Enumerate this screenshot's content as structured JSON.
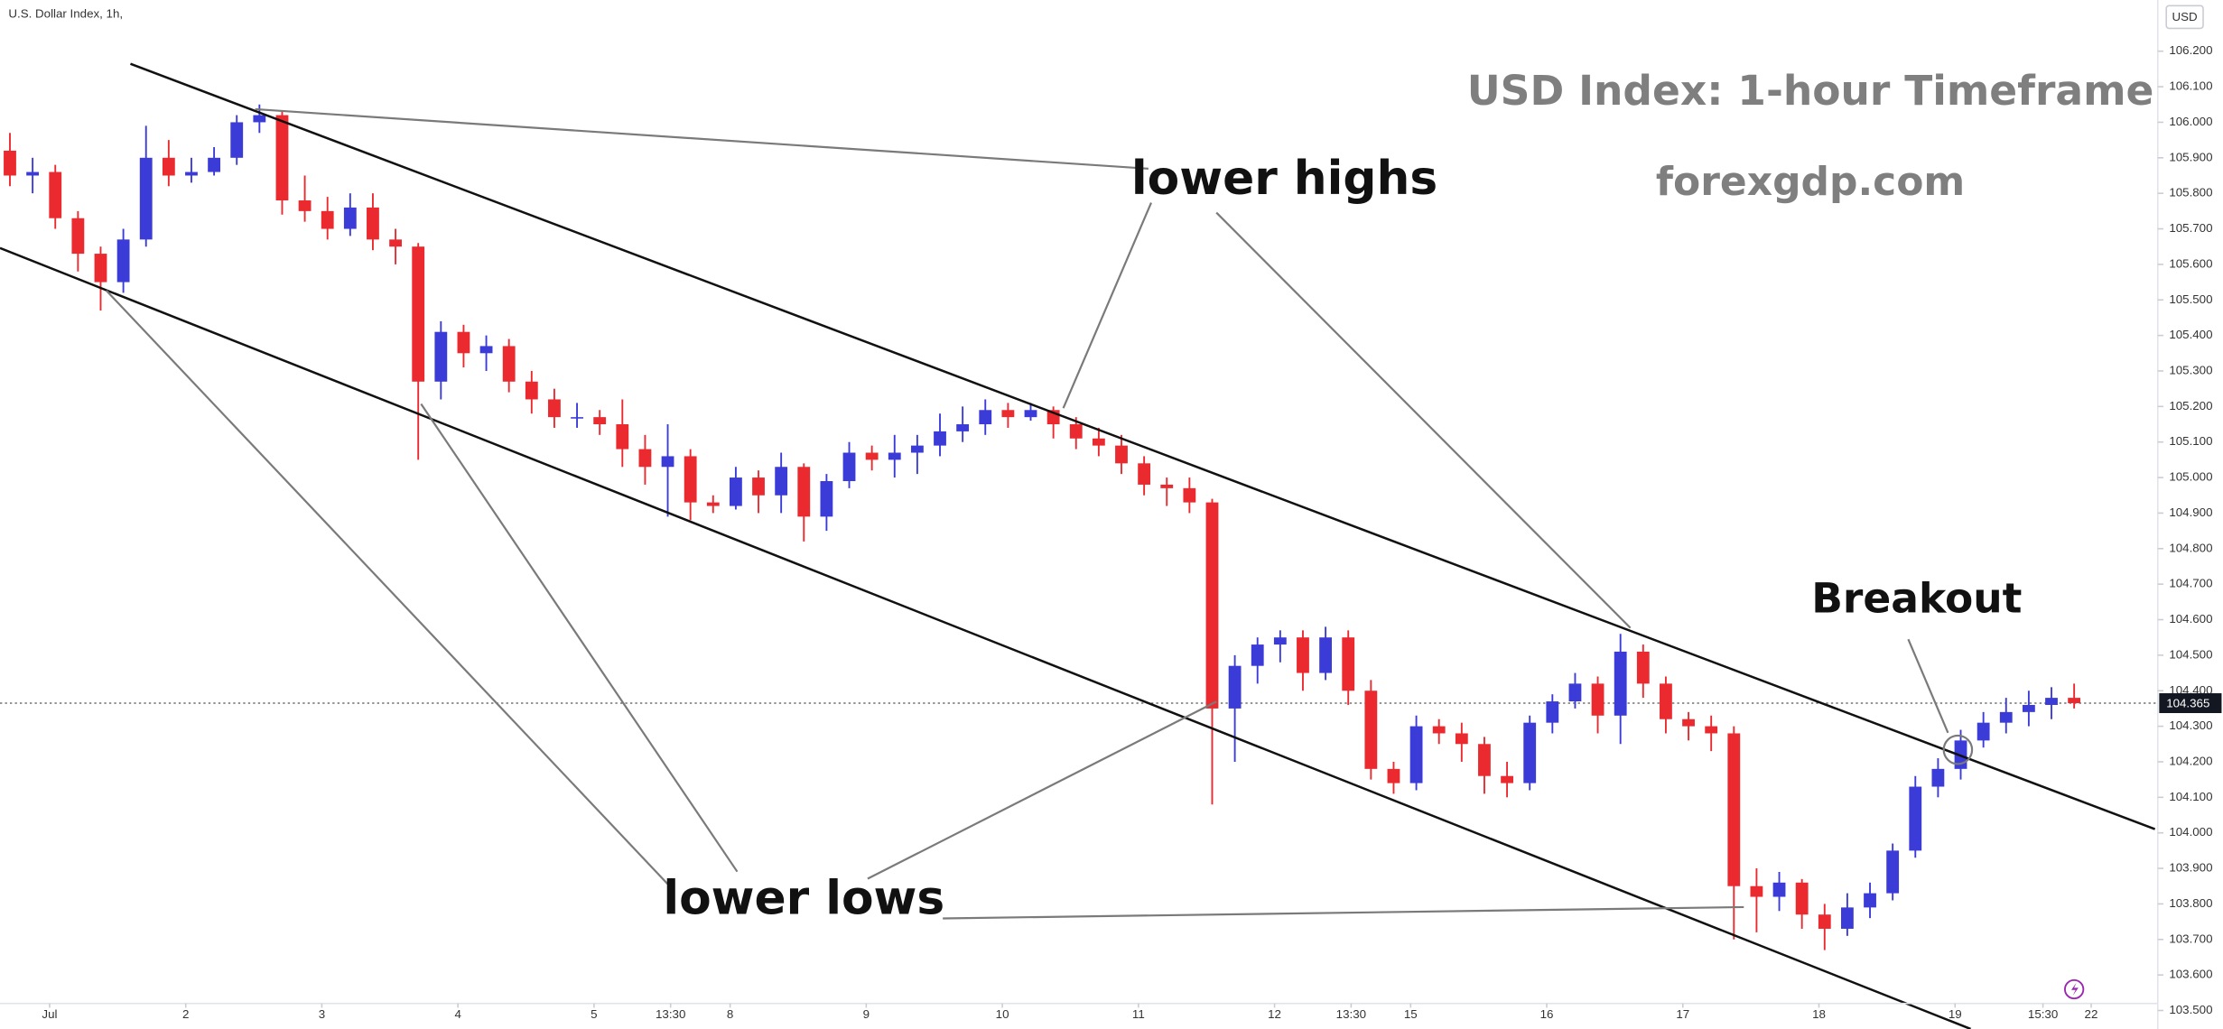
{
  "chart_data": {
    "type": "candlestick",
    "title": "U.S. Dollar Index, 1h,",
    "currency": "USD",
    "headline": "USD Index: 1-hour Timeframe",
    "source": "forexgdp.com",
    "annotations": [
      "lower highs",
      "lower lows",
      "Breakout"
    ],
    "up_color": "#3b3bd8",
    "down_color": "#ea2a2f",
    "last_price": 104.365,
    "xlim": [
      -8.75,
      371.75
    ],
    "ylim": [
      103.448,
      106.344
    ],
    "xticks": [
      {
        "value": 0,
        "label": "Jul"
      },
      {
        "value": 24,
        "label": "2"
      },
      {
        "value": 48,
        "label": "3"
      },
      {
        "value": 72,
        "label": "4"
      },
      {
        "value": 96,
        "label": "5"
      },
      {
        "value": 109.5,
        "label": "13:30"
      },
      {
        "value": 120,
        "label": "8"
      },
      {
        "value": 144,
        "label": "9"
      },
      {
        "value": 168,
        "label": "10"
      },
      {
        "value": 192,
        "label": "11"
      },
      {
        "value": 216,
        "label": "12"
      },
      {
        "value": 229.5,
        "label": "13:30"
      },
      {
        "value": 240,
        "label": "15"
      },
      {
        "value": 264,
        "label": "16"
      },
      {
        "value": 288,
        "label": "17"
      },
      {
        "value": 312,
        "label": "18"
      },
      {
        "value": 336,
        "label": "19"
      },
      {
        "value": 351.5,
        "label": "15:30"
      },
      {
        "value": 360,
        "label": "22"
      }
    ],
    "yticks": [
      {
        "value": 106.2,
        "label": "106.200"
      },
      {
        "value": 106.1,
        "label": "106.100"
      },
      {
        "value": 106.0,
        "label": "106.000"
      },
      {
        "value": 105.9,
        "label": "105.900"
      },
      {
        "value": 105.8,
        "label": "105.800"
      },
      {
        "value": 105.7,
        "label": "105.700"
      },
      {
        "value": 105.6,
        "label": "105.600"
      },
      {
        "value": 105.5,
        "label": "105.500"
      },
      {
        "value": 105.4,
        "label": "105.400"
      },
      {
        "value": 105.3,
        "label": "105.300"
      },
      {
        "value": 105.2,
        "label": "105.200"
      },
      {
        "value": 105.1,
        "label": "105.100"
      },
      {
        "value": 105.0,
        "label": "105.000"
      },
      {
        "value": 104.9,
        "label": "104.900"
      },
      {
        "value": 104.8,
        "label": "104.800"
      },
      {
        "value": 104.7,
        "label": "104.700"
      },
      {
        "value": 104.6,
        "label": "104.600"
      },
      {
        "value": 104.5,
        "label": "104.500"
      },
      {
        "value": 104.4,
        "label": "104.400"
      },
      {
        "value": 104.3,
        "label": "104.300"
      },
      {
        "value": 104.2,
        "label": "104.200"
      },
      {
        "value": 104.1,
        "label": "104.100"
      },
      {
        "value": 104.0,
        "label": "104.000"
      },
      {
        "value": 103.9,
        "label": "103.900"
      },
      {
        "value": 103.8,
        "label": "103.800"
      },
      {
        "value": 103.7,
        "label": "103.700"
      },
      {
        "value": 103.6,
        "label": "103.600"
      },
      {
        "value": 103.5,
        "label": "103.500"
      }
    ],
    "x": [
      -7,
      -3,
      1,
      5,
      9,
      13,
      17,
      21,
      25,
      29,
      33,
      37,
      41,
      45,
      49,
      53,
      57,
      61,
      65,
      69,
      73,
      77,
      81,
      85,
      89,
      93,
      97,
      101,
      105,
      109,
      113,
      117,
      121,
      125,
      129,
      133,
      137,
      141,
      145,
      149,
      153,
      157,
      161,
      165,
      169,
      173,
      177,
      181,
      185,
      189,
      193,
      197,
      201,
      205,
      209,
      213,
      217,
      221,
      225,
      229,
      233,
      237,
      241,
      245,
      249,
      253,
      257,
      261,
      265,
      269,
      273,
      277,
      281,
      285,
      289,
      293,
      297,
      301,
      305,
      309,
      313,
      317,
      321,
      325,
      329,
      333,
      337,
      341,
      345,
      349,
      353,
      357
    ],
    "open": [
      105.92,
      105.85,
      105.86,
      105.73,
      105.63,
      105.55,
      105.67,
      105.9,
      105.85,
      105.86,
      105.9,
      106.0,
      106.02,
      105.78,
      105.75,
      105.7,
      105.76,
      105.67,
      105.65,
      105.27,
      105.41,
      105.35,
      105.37,
      105.27,
      105.22,
      105.17,
      105.17,
      105.15,
      105.08,
      105.03,
      105.06,
      104.93,
      104.92,
      105.0,
      104.95,
      105.03,
      104.89,
      104.99,
      105.07,
      105.05,
      105.07,
      105.09,
      105.13,
      105.15,
      105.19,
      105.17,
      105.19,
      105.15,
      105.11,
      105.09,
      105.04,
      104.98,
      104.97,
      104.93,
      104.35,
      104.47,
      104.53,
      104.55,
      104.45,
      104.55,
      104.4,
      104.18,
      104.14,
      104.3,
      104.28,
      104.25,
      104.16,
      104.14,
      104.31,
      104.37,
      104.42,
      104.33,
      104.51,
      104.42,
      104.32,
      104.3,
      104.28,
      103.85,
      103.82,
      103.86,
      103.77,
      103.73,
      103.79,
      103.83,
      103.95,
      104.13,
      104.18,
      104.26,
      104.31,
      104.34,
      104.36,
      104.38
    ],
    "high": [
      105.97,
      105.9,
      105.88,
      105.75,
      105.65,
      105.7,
      105.99,
      105.95,
      105.9,
      105.93,
      106.02,
      106.05,
      106.03,
      105.85,
      105.79,
      105.8,
      105.8,
      105.7,
      105.66,
      105.44,
      105.43,
      105.4,
      105.39,
      105.3,
      105.25,
      105.21,
      105.19,
      105.22,
      105.12,
      105.15,
      105.08,
      104.95,
      105.03,
      105.02,
      105.07,
      105.04,
      105.01,
      105.1,
      105.09,
      105.12,
      105.12,
      105.18,
      105.2,
      105.22,
      105.21,
      105.21,
      105.2,
      105.17,
      105.14,
      105.12,
      105.06,
      105.0,
      105.0,
      104.94,
      104.5,
      104.55,
      104.57,
      104.57,
      104.58,
      104.57,
      104.43,
      104.2,
      104.33,
      104.32,
      104.31,
      104.27,
      104.2,
      104.33,
      104.39,
      104.45,
      104.44,
      104.56,
      104.53,
      104.44,
      104.34,
      104.33,
      104.3,
      103.9,
      103.89,
      103.87,
      103.8,
      103.83,
      103.86,
      103.97,
      104.16,
      104.21,
      104.29,
      104.34,
      104.38,
      104.4,
      104.41,
      104.42
    ],
    "low": [
      105.82,
      105.8,
      105.7,
      105.58,
      105.47,
      105.52,
      105.65,
      105.82,
      105.83,
      105.85,
      105.88,
      105.97,
      105.74,
      105.72,
      105.67,
      105.68,
      105.64,
      105.6,
      105.05,
      105.22,
      105.31,
      105.3,
      105.24,
      105.18,
      105.14,
      105.14,
      105.12,
      105.03,
      104.98,
      104.89,
      104.88,
      104.9,
      104.91,
      104.9,
      104.9,
      104.82,
      104.85,
      104.97,
      105.02,
      105.0,
      105.01,
      105.06,
      105.1,
      105.12,
      105.14,
      105.16,
      105.11,
      105.08,
      105.06,
      105.01,
      104.95,
      104.92,
      104.9,
      104.08,
      104.2,
      104.42,
      104.48,
      104.4,
      104.43,
      104.36,
      104.15,
      104.11,
      104.12,
      104.25,
      104.2,
      104.11,
      104.1,
      104.12,
      104.28,
      104.35,
      104.28,
      104.25,
      104.38,
      104.28,
      104.26,
      104.23,
      103.7,
      103.72,
      103.78,
      103.73,
      103.67,
      103.71,
      103.76,
      103.81,
      103.93,
      104.1,
      104.15,
      104.24,
      104.28,
      104.3,
      104.32,
      104.35
    ],
    "close": [
      105.85,
      105.86,
      105.73,
      105.63,
      105.55,
      105.67,
      105.9,
      105.85,
      105.86,
      105.9,
      106.0,
      106.02,
      105.78,
      105.75,
      105.7,
      105.76,
      105.67,
      105.65,
      105.27,
      105.41,
      105.35,
      105.37,
      105.27,
      105.22,
      105.17,
      105.17,
      105.15,
      105.08,
      105.03,
      105.06,
      104.93,
      104.92,
      105.0,
      104.95,
      105.03,
      104.89,
      104.99,
      105.07,
      105.05,
      105.07,
      105.09,
      105.13,
      105.15,
      105.19,
      105.17,
      105.19,
      105.15,
      105.11,
      105.09,
      105.04,
      104.98,
      104.97,
      104.93,
      104.35,
      104.47,
      104.53,
      104.55,
      104.45,
      104.55,
      104.4,
      104.18,
      104.14,
      104.3,
      104.28,
      104.25,
      104.16,
      104.14,
      104.31,
      104.37,
      104.42,
      104.33,
      104.51,
      104.42,
      104.32,
      104.3,
      104.28,
      103.85,
      103.82,
      103.86,
      103.77,
      103.73,
      103.79,
      103.83,
      103.95,
      104.13,
      104.18,
      104.26,
      104.31,
      104.34,
      104.36,
      104.38,
      104.365
    ]
  }
}
